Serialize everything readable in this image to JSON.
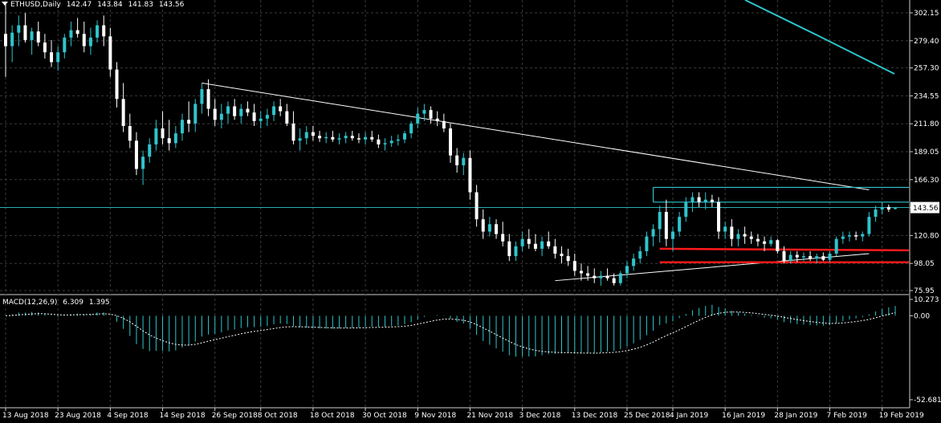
{
  "header": {
    "symbol": "ETHUSD,Daily",
    "open": "142.47",
    "high": "143.84",
    "low": "141.83",
    "close": "143.56"
  },
  "macd_header": {
    "label": "MACD(12,26,9)",
    "macd": "6.309",
    "signal": "1.395"
  },
  "colors": {
    "background": "#000000",
    "grid": "#3a3a3a",
    "bull": "#2fc4cc",
    "bear": "#ffffff",
    "trendline": "#ffffff",
    "channel": "#2fc4cc",
    "support": "#ff1a1a",
    "current_price_line": "#2fc4cc",
    "macd_hist": "#2fc4cc",
    "signal_line": "#ffffff"
  },
  "chart_data": [
    {
      "type": "candlestick",
      "symbol": "ETHUSD",
      "timeframe": "Daily",
      "x_tick_labels": [
        "13 Aug 2018",
        "23 Aug 2018",
        "4 Sep 2018",
        "14 Sep 2018",
        "26 Sep 2018",
        "8 Oct 2018",
        "18 Oct 2018",
        "30 Oct 2018",
        "9 Nov 2018",
        "21 Nov 2018",
        "3 Dec 2018",
        "13 Dec 2018",
        "25 Dec 2018",
        "4 Jan 2019",
        "16 Jan 2019",
        "28 Jan 2019",
        "7 Feb 2019",
        "19 Feb 2019"
      ],
      "y_tick_labels": [
        "302.15",
        "279.40",
        "257.30",
        "234.55",
        "211.80",
        "189.05",
        "166.30",
        "143.56",
        "120.80",
        "98.05",
        "75.95"
      ],
      "ylim": [
        75.95,
        302.15
      ],
      "current_price": "143.56",
      "grid": true,
      "ohlc": [
        [
          285,
          310,
          250,
          275
        ],
        [
          275,
          292,
          262,
          286
        ],
        [
          286,
          300,
          275,
          292
        ],
        [
          292,
          302,
          278,
          280
        ],
        [
          280,
          290,
          268,
          287
        ],
        [
          287,
          295,
          275,
          278
        ],
        [
          278,
          285,
          265,
          270
        ],
        [
          270,
          280,
          258,
          262
        ],
        [
          262,
          275,
          255,
          270
        ],
        [
          270,
          285,
          265,
          282
        ],
        [
          282,
          295,
          275,
          288
        ],
        [
          288,
          298,
          282,
          285
        ],
        [
          285,
          295,
          270,
          275
        ],
        [
          275,
          290,
          268,
          282
        ],
        [
          282,
          296,
          278,
          292
        ],
        [
          292,
          300,
          275,
          283
        ],
        [
          283,
          290,
          250,
          256
        ],
        [
          256,
          262,
          225,
          232
        ],
        [
          232,
          245,
          205,
          210
        ],
        [
          210,
          220,
          192,
          198
        ],
        [
          198,
          205,
          170,
          175
        ],
        [
          175,
          190,
          162,
          185
        ],
        [
          185,
          200,
          180,
          195
        ],
        [
          195,
          215,
          190,
          208
        ],
        [
          208,
          222,
          195,
          200
        ],
        [
          200,
          215,
          190,
          196
        ],
        [
          196,
          210,
          192,
          204
        ],
        [
          204,
          220,
          198,
          215
        ],
        [
          215,
          230,
          205,
          212
        ],
        [
          212,
          232,
          205,
          228
        ],
        [
          228,
          245,
          220,
          240
        ],
        [
          240,
          248,
          218,
          224
        ],
        [
          224,
          232,
          210,
          215
        ],
        [
          215,
          228,
          208,
          220
        ],
        [
          220,
          230,
          212,
          226
        ],
        [
          226,
          232,
          215,
          218
        ],
        [
          218,
          228,
          212,
          224
        ],
        [
          224,
          230,
          218,
          221
        ],
        [
          221,
          228,
          210,
          214
        ],
        [
          214,
          222,
          208,
          216
        ],
        [
          216,
          224,
          210,
          219
        ],
        [
          219,
          230,
          214,
          226
        ],
        [
          226,
          232,
          218,
          222
        ],
        [
          222,
          228,
          210,
          212
        ],
        [
          212,
          222,
          195,
          198
        ],
        [
          198,
          208,
          190,
          200
        ],
        [
          200,
          210,
          195,
          205
        ],
        [
          205,
          210,
          198,
          202
        ],
        [
          202,
          206,
          197,
          200
        ],
        [
          200,
          205,
          196,
          201
        ],
        [
          201,
          206,
          197,
          199
        ],
        [
          199,
          204,
          195,
          200
        ],
        [
          200,
          205,
          196,
          202
        ],
        [
          202,
          206,
          198,
          200
        ],
        [
          200,
          204,
          196,
          199
        ],
        [
          199,
          205,
          195,
          201
        ],
        [
          201,
          206,
          197,
          199
        ],
        [
          199,
          203,
          192,
          195
        ],
        [
          195,
          200,
          190,
          196
        ],
        [
          196,
          202,
          193,
          198
        ],
        [
          198,
          203,
          194,
          199
        ],
        [
          199,
          206,
          196,
          204
        ],
        [
          204,
          214,
          200,
          212
        ],
        [
          212,
          225,
          208,
          220
        ],
        [
          220,
          228,
          214,
          223
        ],
        [
          223,
          226,
          212,
          216
        ],
        [
          216,
          222,
          210,
          214
        ],
        [
          214,
          220,
          205,
          208
        ],
        [
          208,
          212,
          180,
          186
        ],
        [
          186,
          192,
          172,
          178
        ],
        [
          178,
          188,
          170,
          184
        ],
        [
          184,
          190,
          150,
          156
        ],
        [
          156,
          162,
          128,
          134
        ],
        [
          134,
          142,
          118,
          124
        ],
        [
          124,
          136,
          120,
          130
        ],
        [
          130,
          134,
          118,
          122
        ],
        [
          122,
          132,
          112,
          116
        ],
        [
          116,
          122,
          100,
          104
        ],
        [
          104,
          116,
          100,
          112
        ],
        [
          112,
          124,
          108,
          118
        ],
        [
          118,
          126,
          110,
          114
        ],
        [
          114,
          122,
          108,
          110
        ],
        [
          110,
          120,
          104,
          116
        ],
        [
          116,
          124,
          110,
          112
        ],
        [
          112,
          118,
          102,
          106
        ],
        [
          106,
          112,
          98,
          104
        ],
        [
          104,
          110,
          96,
          100
        ],
        [
          100,
          106,
          88,
          92
        ],
        [
          92,
          98,
          84,
          90
        ],
        [
          90,
          96,
          84,
          88
        ],
        [
          88,
          94,
          82,
          86
        ],
        [
          86,
          92,
          80,
          88
        ],
        [
          88,
          94,
          84,
          86
        ],
        [
          86,
          90,
          80,
          82
        ],
        [
          82,
          92,
          80,
          90
        ],
        [
          90,
          100,
          86,
          96
        ],
        [
          96,
          106,
          92,
          102
        ],
        [
          102,
          112,
          98,
          108
        ],
        [
          108,
          124,
          104,
          120
        ],
        [
          120,
          130,
          112,
          126
        ],
        [
          126,
          145,
          115,
          140
        ],
        [
          140,
          150,
          112,
          118
        ],
        [
          118,
          128,
          108,
          124
        ],
        [
          124,
          140,
          120,
          136
        ],
        [
          136,
          152,
          132,
          148
        ],
        [
          148,
          156,
          140,
          152
        ],
        [
          152,
          156,
          144,
          148
        ],
        [
          148,
          156,
          142,
          150
        ],
        [
          150,
          154,
          144,
          148
        ],
        [
          148,
          152,
          118,
          124
        ],
        [
          124,
          132,
          118,
          128
        ],
        [
          128,
          134,
          112,
          118
        ],
        [
          118,
          126,
          112,
          122
        ],
        [
          122,
          128,
          114,
          120
        ],
        [
          120,
          124,
          114,
          118
        ],
        [
          118,
          122,
          112,
          116
        ],
        [
          116,
          120,
          108,
          114
        ],
        [
          114,
          120,
          112,
          117
        ],
        [
          117,
          118,
          106,
          108
        ],
        [
          108,
          112,
          98,
          100
        ],
        [
          100,
          108,
          98,
          105
        ],
        [
          105,
          108,
          99,
          103
        ],
        [
          103,
          107,
          100,
          104
        ],
        [
          104,
          108,
          100,
          102
        ],
        [
          102,
          106,
          98,
          104
        ],
        [
          104,
          107,
          100,
          101
        ],
        [
          101,
          108,
          99,
          106
        ],
        [
          106,
          120,
          104,
          118
        ],
        [
          118,
          124,
          114,
          120
        ],
        [
          120,
          124,
          116,
          121
        ],
        [
          121,
          124,
          117,
          120
        ],
        [
          120,
          124,
          116,
          122
        ],
        [
          122,
          140,
          120,
          136
        ],
        [
          136,
          145,
          132,
          142
        ],
        [
          142,
          148,
          138,
          144
        ],
        [
          144,
          146,
          140,
          142
        ],
        [
          142.47,
          143.84,
          141.83,
          143.56
        ]
      ],
      "annotations": {
        "descending_trendline": [
          [
            30,
            245
          ],
          [
            132,
            158
          ]
        ],
        "ascending_trendline": [
          [
            84,
            84
          ],
          [
            132,
            106
          ]
        ],
        "channel_top": 160,
        "channel_mid": 148,
        "support_upper": 110,
        "support_lower": 99
      }
    },
    {
      "type": "histogram",
      "name": "MACD(12,26,9)",
      "y_tick_labels": [
        "10.273",
        "0.00",
        "-52.681"
      ],
      "ylim": [
        -52.681,
        10.273
      ]
    }
  ]
}
